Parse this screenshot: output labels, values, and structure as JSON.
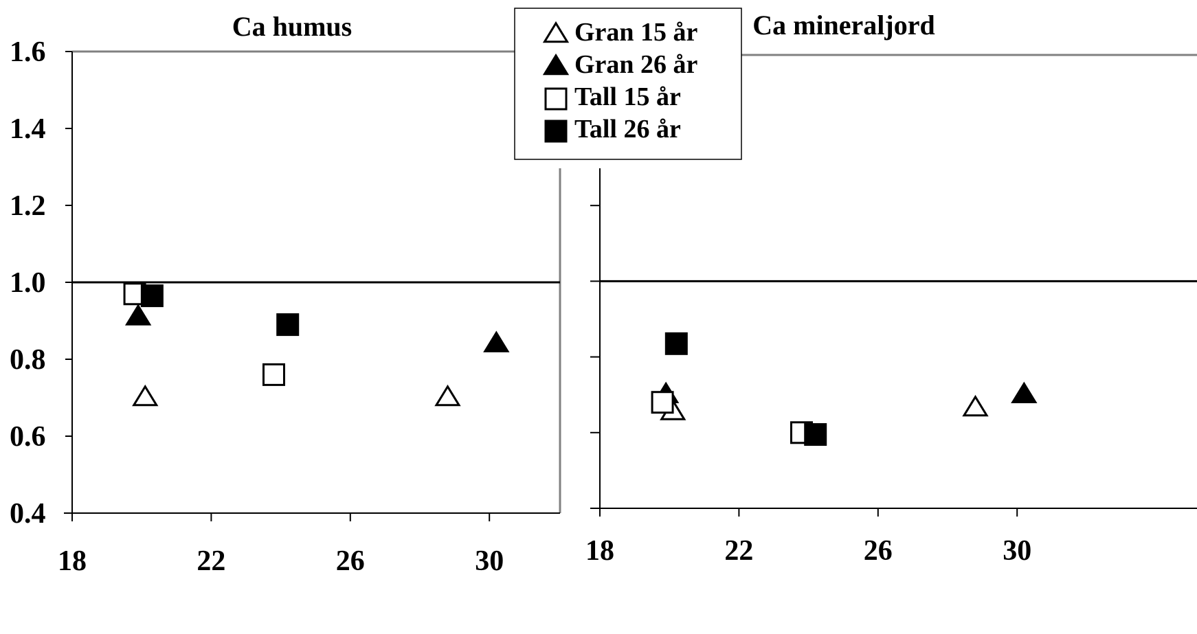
{
  "chart_data": [
    {
      "type": "scatter",
      "title": "Ca humus",
      "xlabel": "",
      "ylabel": "",
      "xlim": [
        18,
        32
      ],
      "ylim": [
        0.4,
        1.6
      ],
      "x_ticks": [
        18,
        22,
        26,
        30
      ],
      "y_ticks": [
        "0.4",
        "0.6",
        "0.8",
        "1.0",
        "1.2",
        "1.4",
        "1.6"
      ],
      "reference_line": 1.0,
      "grid": false,
      "series": [
        {
          "name": "Gran 15 år",
          "marker": "triangle-open",
          "points": [
            [
              20.1,
              0.7
            ],
            [
              28.8,
              0.7
            ]
          ]
        },
        {
          "name": "Gran 26 år",
          "marker": "triangle-filled",
          "points": [
            [
              19.9,
              0.91
            ],
            [
              30.2,
              0.84
            ]
          ]
        },
        {
          "name": "Tall 15 år",
          "marker": "square-open",
          "points": [
            [
              19.8,
              0.97
            ],
            [
              23.8,
              0.76
            ]
          ]
        },
        {
          "name": "Tall 26 år",
          "marker": "square-filled",
          "points": [
            [
              20.3,
              0.965
            ],
            [
              24.2,
              0.89
            ]
          ]
        }
      ]
    },
    {
      "type": "scatter",
      "title": "Ca mineraljord",
      "xlabel": "",
      "ylabel": "",
      "xlim": [
        18,
        32
      ],
      "ylim": [
        0.4,
        1.6
      ],
      "x_ticks": [
        18,
        22,
        26,
        30
      ],
      "reference_line": 1.0,
      "grid": false,
      "series": [
        {
          "name": "Gran 15 år",
          "marker": "triangle-open",
          "points": [
            [
              20.1,
              0.655
            ],
            [
              28.8,
              0.665
            ]
          ]
        },
        {
          "name": "Gran 26 år",
          "marker": "triangle-filled",
          "points": [
            [
              19.9,
              0.7
            ],
            [
              30.2,
              0.7
            ]
          ]
        },
        {
          "name": "Tall 15 år",
          "marker": "square-open",
          "points": [
            [
              19.8,
              0.68
            ],
            [
              23.8,
              0.6
            ]
          ]
        },
        {
          "name": "Tall 26 år",
          "marker": "square-filled",
          "points": [
            [
              20.2,
              0.835
            ],
            [
              24.2,
              0.595
            ]
          ]
        }
      ]
    }
  ],
  "legend": {
    "placement": "top-center",
    "entries": [
      {
        "label": "Gran 15 år",
        "marker": "triangle-open"
      },
      {
        "label": "Gran 26 år",
        "marker": "triangle-filled"
      },
      {
        "label": "Tall 15 år",
        "marker": "square-open"
      },
      {
        "label": "Tall 26 år",
        "marker": "square-filled"
      }
    ]
  },
  "colors": {
    "marker": "#000000",
    "frame": "#808080",
    "axis": "#000000"
  }
}
